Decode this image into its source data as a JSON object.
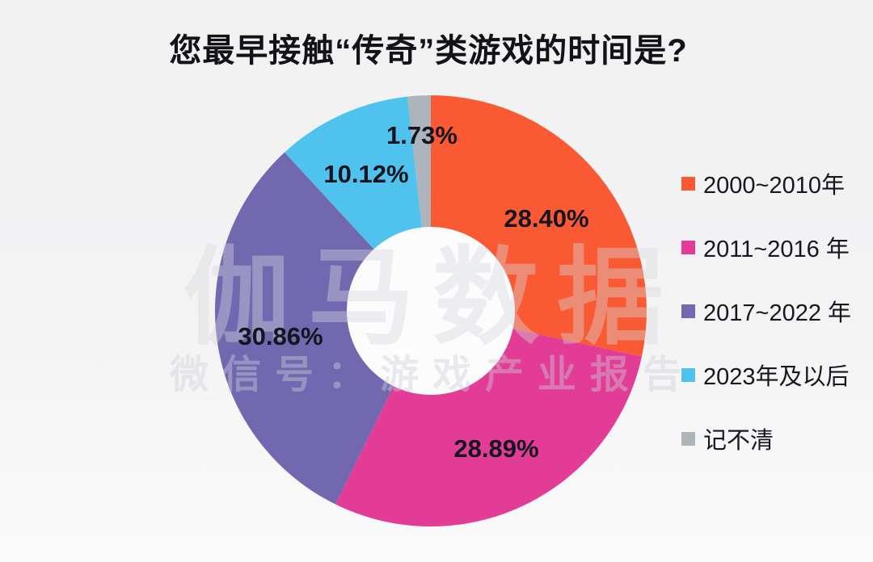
{
  "page": {
    "title": "您最早接触“传奇”类游戏的时间是?"
  },
  "watermark": {
    "line1": "伽马数据",
    "line2": "微信号：游戏产业报告"
  },
  "chart_data": {
    "type": "pie",
    "subtype": "donut",
    "title": "您最早接触“传奇”类游戏的时间是?",
    "unit": "%",
    "start_angle_deg": 0,
    "direction": "clockwise",
    "inner_radius_ratio": 0.39,
    "legend_position": "right",
    "grid": false,
    "categories": [
      "2000~2010年",
      "2011~2016 年",
      "2017~2022 年",
      "2023年及以后",
      "记不清"
    ],
    "values": [
      28.4,
      28.89,
      30.86,
      10.12,
      1.73
    ],
    "hole_color": "#fcfcfd",
    "slices": [
      {
        "label": "2000~2010年",
        "value": 28.4,
        "label_text": "28.40%",
        "color": "#FA5A33"
      },
      {
        "label": "2011~2016 年",
        "value": 28.89,
        "label_text": "28.89%",
        "color": "#E23C96"
      },
      {
        "label": "2017~2022 年",
        "value": 30.86,
        "label_text": "30.86%",
        "color": "#7268B0"
      },
      {
        "label": "2023年及以后",
        "value": 10.12,
        "label_text": "10.12%",
        "color": "#4FC3EE"
      },
      {
        "label": "记不清",
        "value": 1.73,
        "label_text": "1.73%",
        "color": "#AEB4BC"
      }
    ]
  }
}
